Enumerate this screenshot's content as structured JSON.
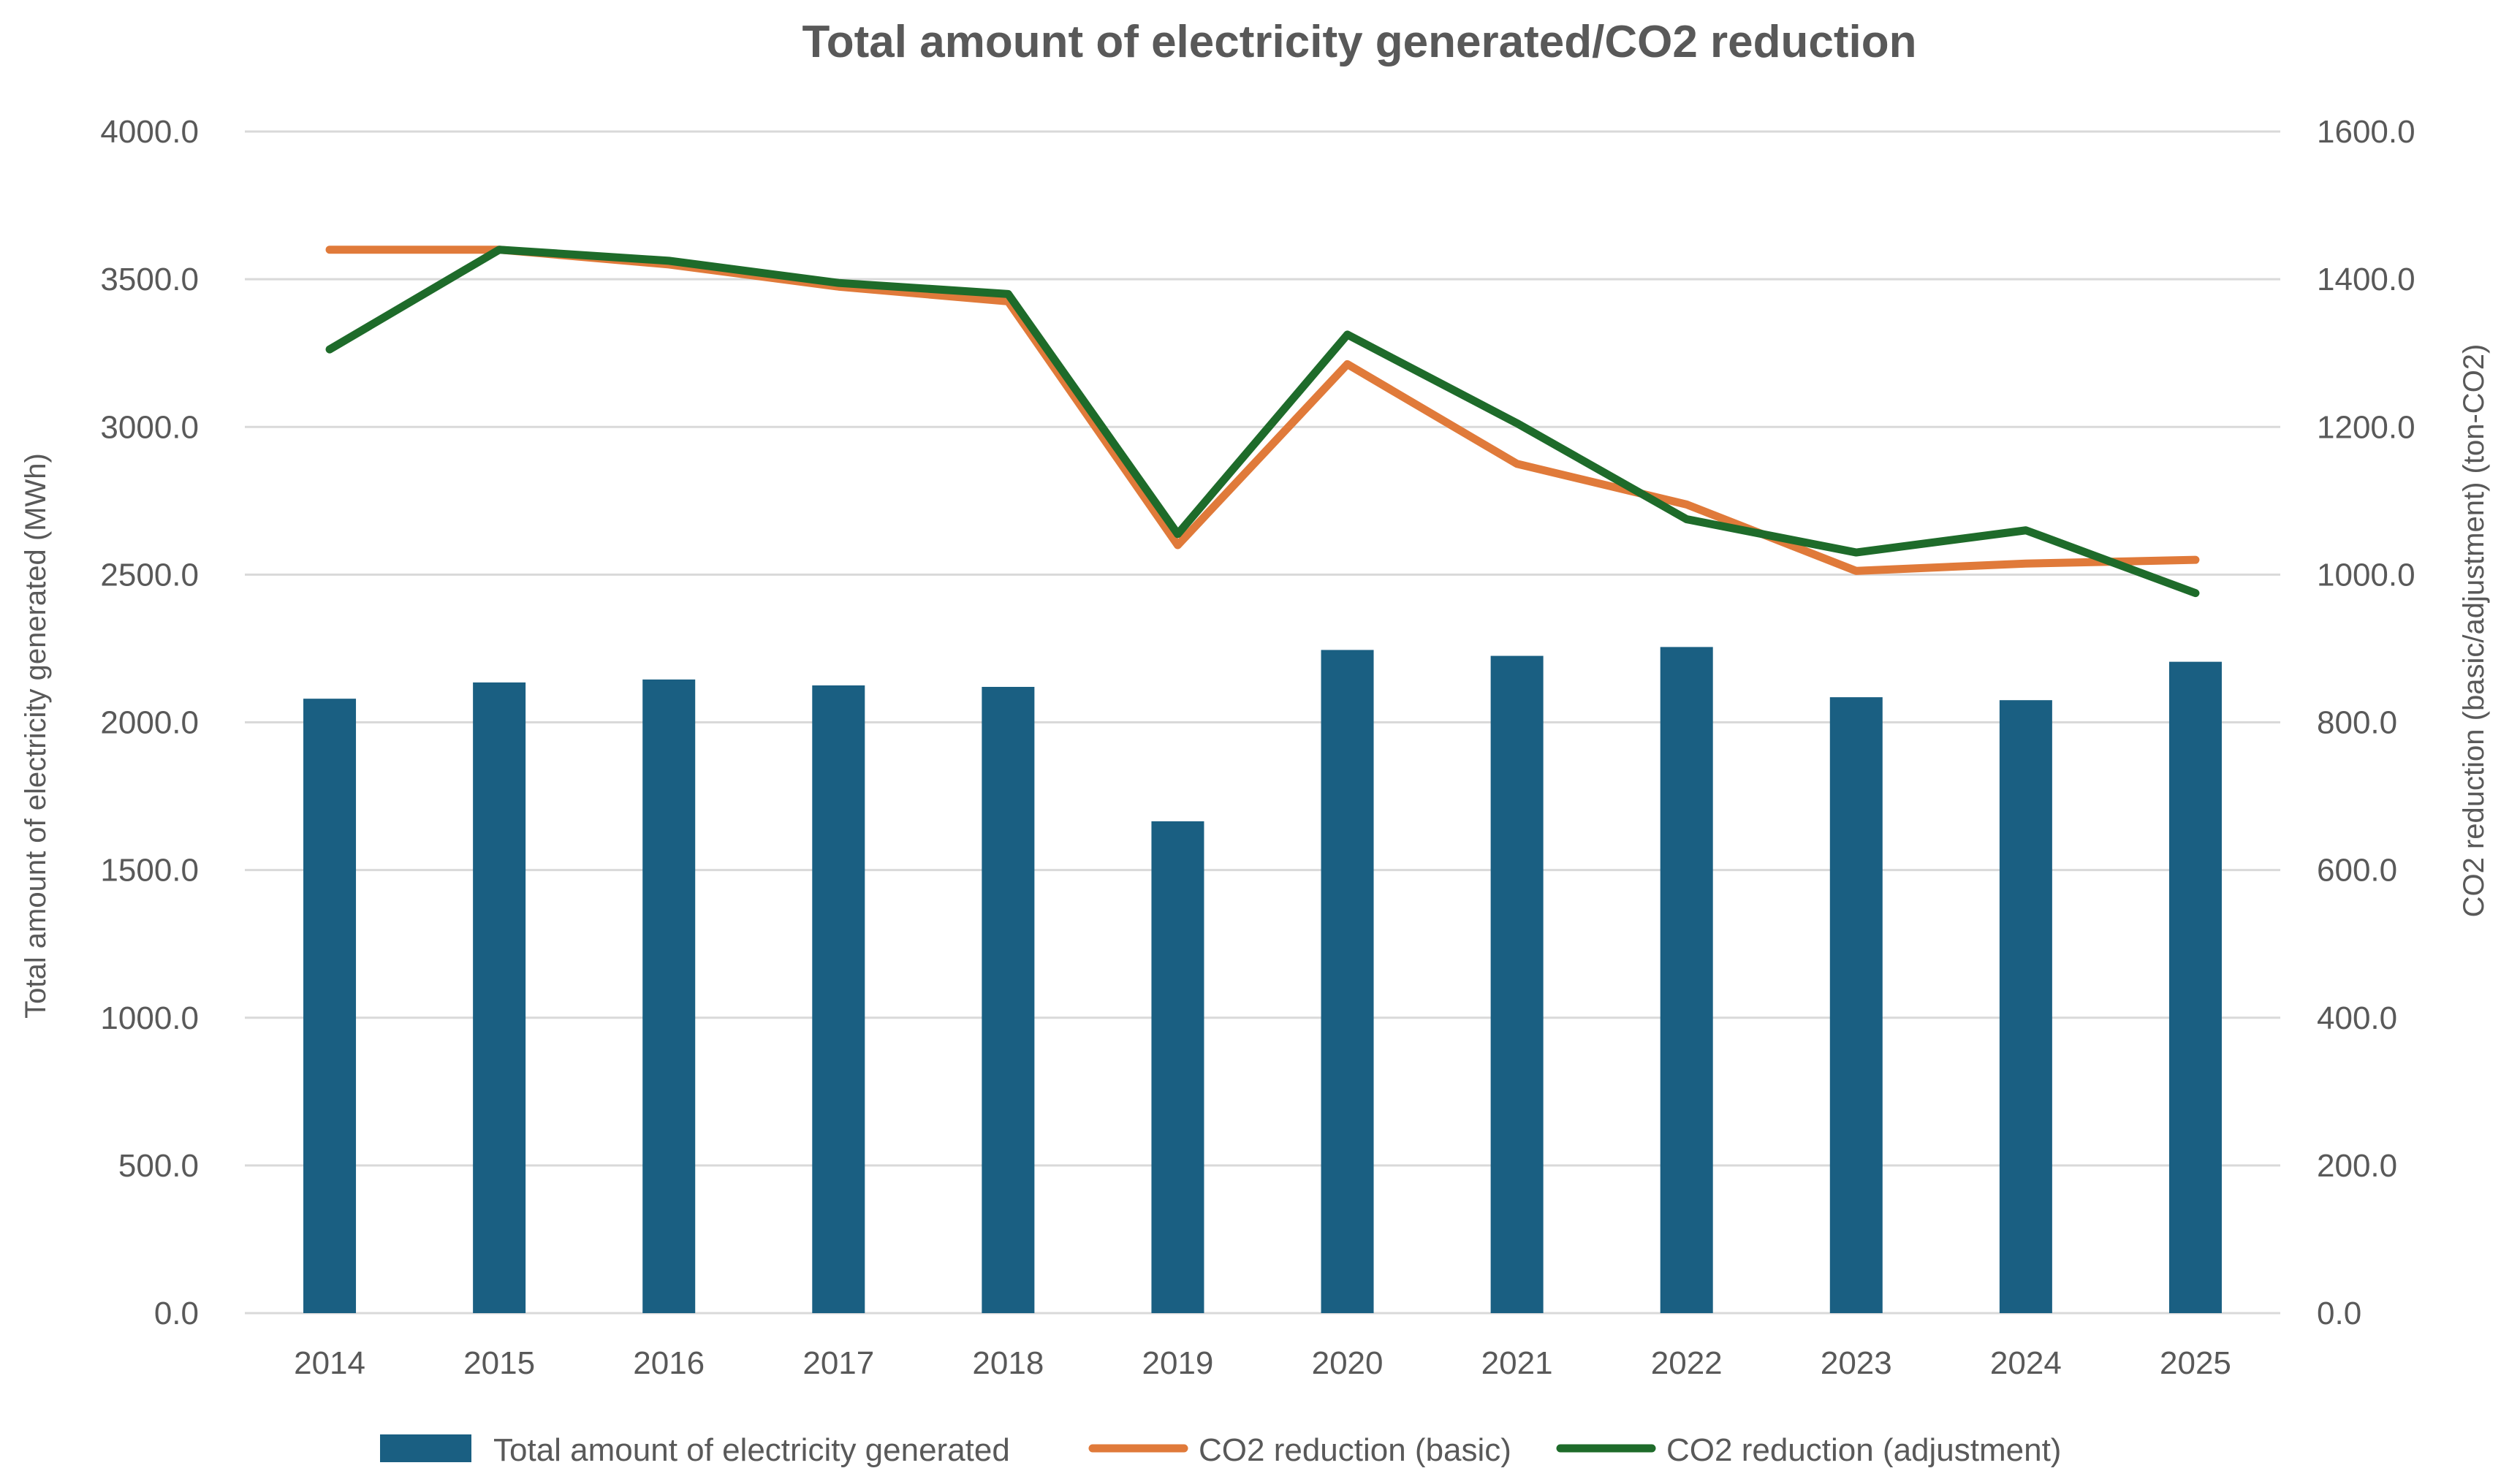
{
  "chart_data": {
    "type": "bar",
    "title": "Total amount of electricity generated/CO2 reduction",
    "categories": [
      "2014",
      "2015",
      "2016",
      "2017",
      "2018",
      "2019",
      "2020",
      "2021",
      "2022",
      "2023",
      "2024",
      "2025"
    ],
    "y_left": {
      "label": "Total amount of electricity generated (MWh)",
      "range": [
        0,
        4000
      ],
      "ticks": [
        "0.0",
        "500.0",
        "1000.0",
        "1500.0",
        "2000.0",
        "2500.0",
        "3000.0",
        "3500.0",
        "4000.0"
      ]
    },
    "y_right": {
      "label": "CO2 reduction (basic/adjustment) (ton-CO2)",
      "range": [
        0,
        1600
      ],
      "ticks": [
        "0.0",
        "200.0",
        "400.0",
        "600.0",
        "800.0",
        "1000.0",
        "1200.0",
        "1400.0",
        "1600.0"
      ]
    },
    "series": [
      {
        "name": "Total amount of electricity generated",
        "type": "bar",
        "axis": "left",
        "color": "#1a5f82",
        "values": [
          2080,
          2135,
          2145,
          2125,
          2120,
          1665,
          2245,
          2225,
          2255,
          2085,
          2075,
          2205
        ]
      },
      {
        "name": "CO2 reduction (basic)",
        "type": "line",
        "axis": "right",
        "color": "#e07a3a",
        "values": [
          1440,
          1440,
          1420,
          1390,
          1370,
          1040,
          1285,
          1150,
          1095,
          1005,
          1015,
          1020
        ]
      },
      {
        "name": "CO2 reduction (adjustment)",
        "type": "line",
        "axis": "right",
        "color": "#1e6b2a",
        "values": [
          1305,
          1440,
          1425,
          1395,
          1380,
          1055,
          1325,
          1205,
          1075,
          1030,
          1060,
          975
        ]
      }
    ],
    "grid": true,
    "legend": "bottom"
  }
}
